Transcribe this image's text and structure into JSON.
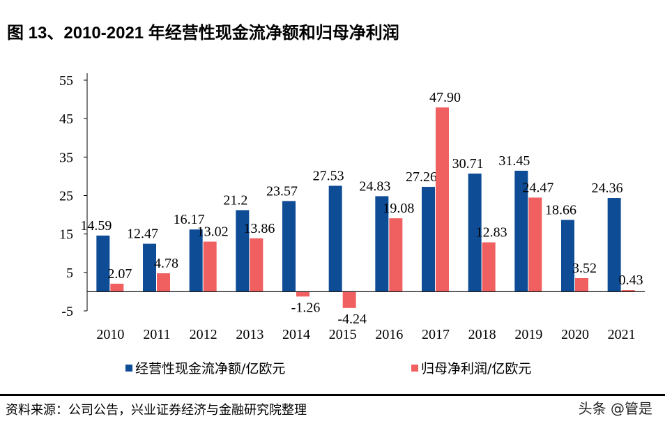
{
  "title": "图 13、2010-2021 年经营性现金流净额和归母净利润",
  "chart_data": {
    "type": "bar",
    "title": "图 13、2010-2021 年经营性现金流净额和归母净利润",
    "categories": [
      "2010",
      "2011",
      "2012",
      "2013",
      "2014",
      "2015",
      "2016",
      "2017",
      "2018",
      "2019",
      "2020",
      "2021"
    ],
    "series": [
      {
        "name": "经营性现金流净额/亿欧元",
        "color": "#0E4C96",
        "values": [
          14.59,
          12.47,
          16.17,
          21.2,
          23.57,
          27.53,
          24.83,
          27.26,
          30.71,
          31.45,
          18.66,
          24.36
        ],
        "labels": [
          "14.59",
          "12.47",
          "16.17",
          "21.2",
          "23.57",
          "27.53",
          "24.83",
          "27.26",
          "30.71",
          "31.45",
          "18.66",
          "24.36"
        ]
      },
      {
        "name": "归母净利润/亿欧元",
        "color": "#F06060",
        "values": [
          2.07,
          4.78,
          13.02,
          13.86,
          -1.26,
          -4.24,
          19.08,
          47.9,
          12.83,
          24.47,
          3.52,
          0.43
        ],
        "labels": [
          "2.07",
          "4.78",
          "13.02",
          "13.86",
          "-1.26",
          "-4.24",
          "19.08",
          "47.90",
          "12.83",
          "24.47",
          "3.52",
          "0.43"
        ]
      }
    ],
    "yticks": [
      "55",
      "45",
      "35",
      "25",
      "15",
      "5",
      "-5"
    ],
    "ylim": [
      -5,
      55
    ],
    "legend": "bottom",
    "grid": false
  },
  "source": "资料来源：公司公告，兴业证券经济与金融研究院整理",
  "watermark": "头条 @管是"
}
